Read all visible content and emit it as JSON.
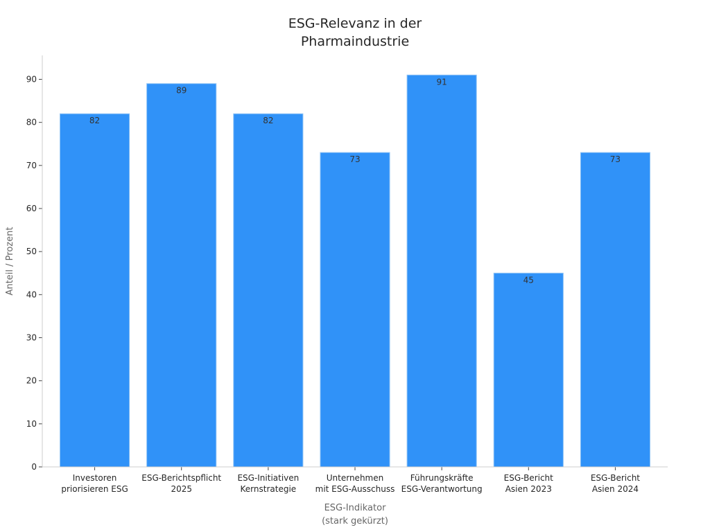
{
  "chart_data": {
    "type": "bar",
    "title_lines": [
      "ESG-Relevanz in der",
      "Pharmaindustrie"
    ],
    "xlabel_lines": [
      "ESG-Indikator",
      "(stark gekürzt)"
    ],
    "ylabel": "Anteil / Prozent",
    "categories": [
      [
        "Investoren",
        "priorisieren ESG"
      ],
      [
        "ESG-Berichtspflicht",
        "2025"
      ],
      [
        "ESG-Initiativen",
        "Kernstrategie"
      ],
      [
        "Unternehmen",
        "mit ESG-Ausschuss"
      ],
      [
        "Führungskräfte",
        "ESG-Verantwortung"
      ],
      [
        "ESG-Bericht",
        "Asien 2023"
      ],
      [
        "ESG-Bericht",
        "Asien 2024"
      ]
    ],
    "values": [
      82,
      89,
      82,
      73,
      91,
      45,
      73
    ],
    "data_labels": [
      "82",
      "89",
      "82",
      "73",
      "91",
      "45",
      "73"
    ],
    "ylim": [
      0,
      95.55
    ],
    "yticks": [
      0,
      10,
      20,
      30,
      40,
      50,
      60,
      70,
      80,
      90
    ],
    "ytick_labels": [
      "0",
      "10",
      "20",
      "30",
      "40",
      "50",
      "60",
      "70",
      "80",
      "90"
    ],
    "grid": false,
    "colors": {
      "bar": "#3092f8",
      "bar_edge": "#8fc3f5",
      "axis": "#cccccc",
      "text": "#262626"
    }
  }
}
